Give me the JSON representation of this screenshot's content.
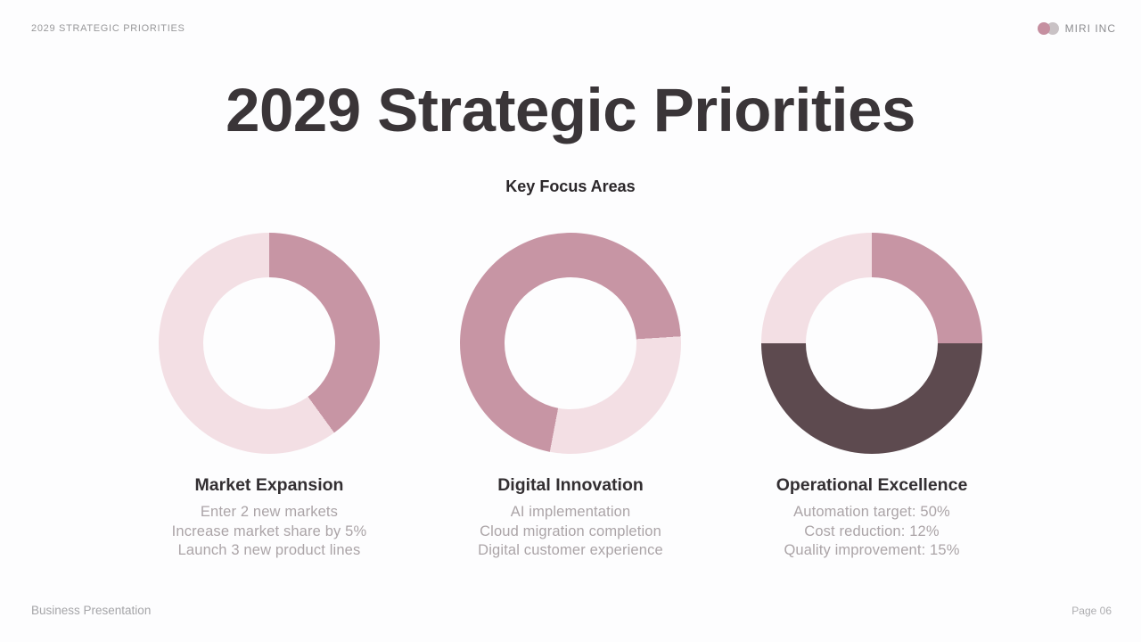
{
  "header": {
    "kicker": "2029 STRATEGIC PRIORITIES",
    "brand": "MIRI INC"
  },
  "title": "2029 Strategic Priorities",
  "subtitle": "Key Focus Areas",
  "footer": {
    "left": "Business Presentation",
    "right": "Page 06"
  },
  "colors": {
    "pink_medium": "#c795a4",
    "pink_light": "#f3dfe4",
    "brown_dark": "#5d4a4f",
    "logo_pink": "#c58fa0",
    "logo_gray": "#c9c2c5"
  },
  "chart_data": {
    "type": "donut-group",
    "legend_position": "none",
    "charts": [
      {
        "label": "Market Expansion",
        "bullets": [
          "Enter 2 new markets",
          "Increase market share by 5%",
          "Launch 3 new product lines"
        ],
        "slices": [
          {
            "value": 40,
            "color": "#c795a4"
          },
          {
            "value": 60,
            "color": "#f3dfe4"
          }
        ]
      },
      {
        "label": "Digital Innovation",
        "bullets": [
          "AI implementation",
          "Cloud migration completion",
          "Digital customer experience"
        ],
        "slices": [
          {
            "value": 24,
            "color": "#c795a4"
          },
          {
            "value": 29,
            "color": "#f3dfe4"
          },
          {
            "value": 47,
            "color": "#c795a4"
          }
        ]
      },
      {
        "label": "Operational Excellence",
        "bullets": [
          "Automation target: 50%",
          "Cost reduction: 12%",
          "Quality improvement: 15%"
        ],
        "slices": [
          {
            "value": 25,
            "color": "#c795a4"
          },
          {
            "value": 50,
            "color": "#5d4a4f"
          },
          {
            "value": 25,
            "color": "#f3dfe4"
          }
        ]
      }
    ]
  }
}
